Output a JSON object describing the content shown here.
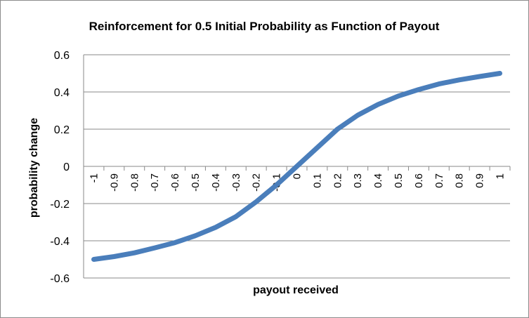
{
  "chart_data": {
    "type": "line",
    "title": "Reinforcement for 0.5 Initial Probability as Function of Payout",
    "xlabel": "payout received",
    "ylabel": "probability change",
    "categories": [
      "-1",
      "-0.9",
      "-0.8",
      "-0.7",
      "-0.6",
      "-0.5",
      "-0.4",
      "-0.3",
      "-0.2",
      "-0.1",
      "0",
      "0.1",
      "0.2",
      "0.3",
      "0.4",
      "0.5",
      "0.6",
      "0.7",
      "0.8",
      "0.9",
      "1"
    ],
    "yticks": [
      "0.6",
      "0.4",
      "0.2",
      "0",
      "-0.2",
      "-0.4",
      "-0.6"
    ],
    "ylim": [
      -0.6,
      0.6
    ],
    "grid": true,
    "legend": "none",
    "series": [
      {
        "values": [
          -0.5,
          -0.485,
          -0.465,
          -0.438,
          -0.41,
          -0.373,
          -0.328,
          -0.27,
          -0.19,
          -0.1,
          0.0,
          0.1,
          0.2,
          0.275,
          0.333,
          0.378,
          0.413,
          0.443,
          0.465,
          0.483,
          0.5
        ],
        "color": "#4a7ebb"
      }
    ]
  }
}
